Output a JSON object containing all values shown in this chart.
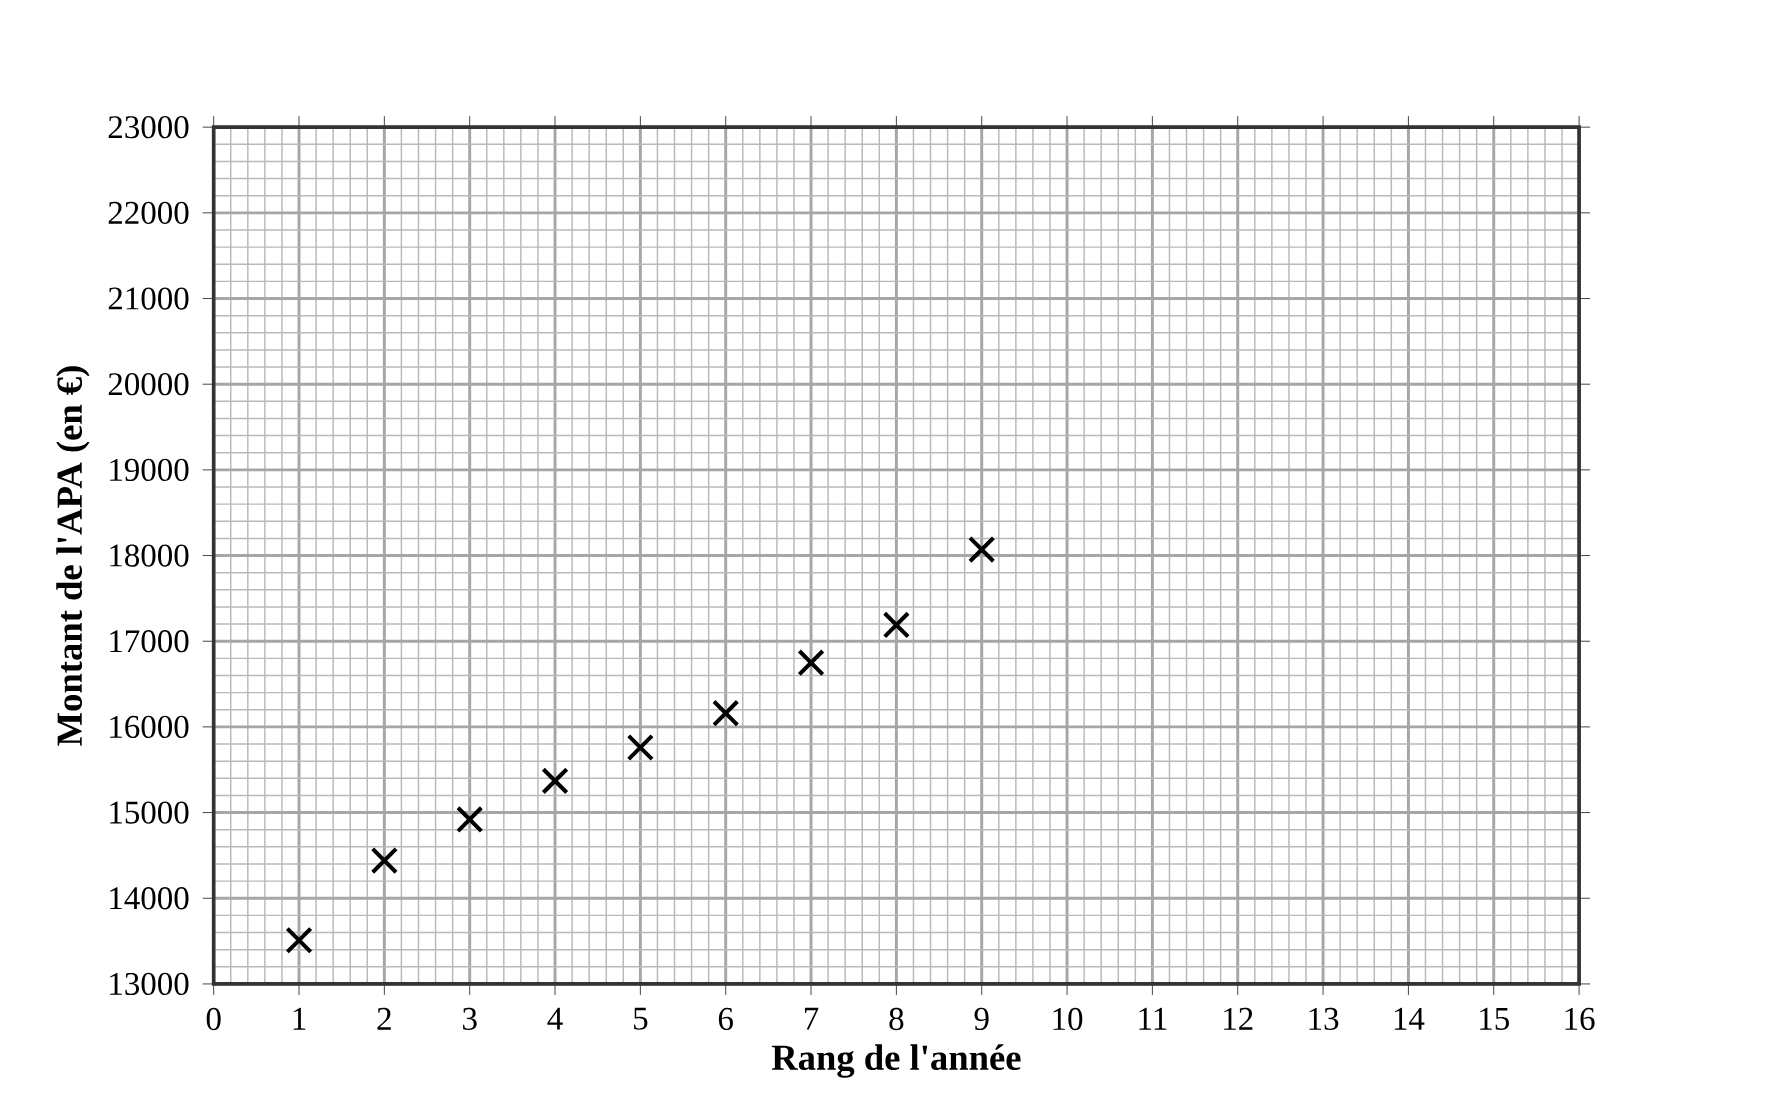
{
  "chart_data": {
    "type": "scatter",
    "xlabel": "Rang de l'année",
    "ylabel": "Montant de l'APA (en €)",
    "x": [
      1,
      2,
      3,
      4,
      5,
      6,
      7,
      8,
      9
    ],
    "values": [
      13510,
      14440,
      14920,
      15370,
      15760,
      16160,
      16750,
      17190,
      18070
    ],
    "color": "#000000",
    "marker": "cross",
    "grid": true,
    "xlim": [
      0,
      16
    ],
    "xticks": [
      0,
      1,
      2,
      3,
      4,
      5,
      6,
      7,
      8,
      9,
      10,
      11,
      12,
      13,
      14,
      15,
      16
    ],
    "ylim": [
      13000,
      23000
    ],
    "yticks": [
      13000,
      14000,
      15000,
      16000,
      17000,
      18000,
      19000,
      20000,
      21000,
      22000,
      23000
    ]
  }
}
